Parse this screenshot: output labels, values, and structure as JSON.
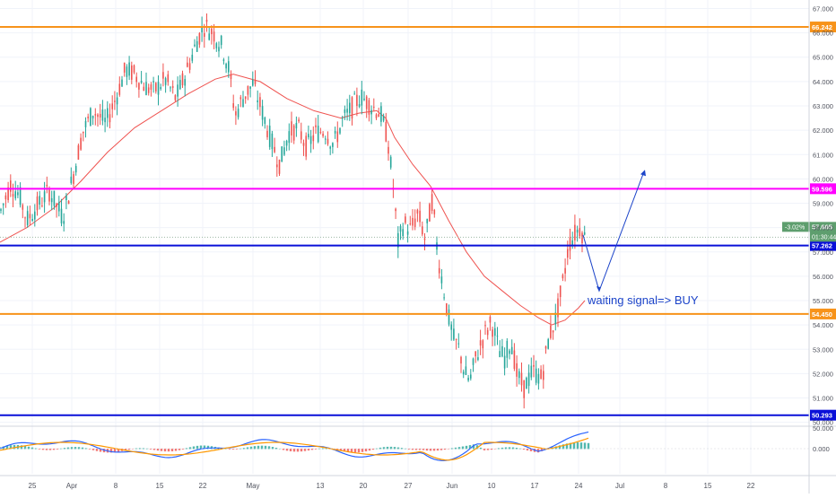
{
  "chart_data": {
    "type": "candlestick",
    "main_panel": {
      "y_axis_ticks": [
        "50.000",
        "51.000",
        "52.000",
        "53.000",
        "54.000",
        "55.000",
        "56.000",
        "57.000",
        "58.000",
        "59.000",
        "60.000",
        "61.000",
        "62.000",
        "63.000",
        "64.000",
        "65.000",
        "66.000",
        "67.000"
      ],
      "ylim": [
        49.95,
        67.35
      ],
      "horizontal_levels": [
        {
          "value": 66.242,
          "label": "66.242",
          "color": "#f7931a"
        },
        {
          "value": 59.596,
          "label": "59.596",
          "color": "#ff00ff"
        },
        {
          "value": 57.262,
          "label": "57.262",
          "color": "#0a10d8"
        },
        {
          "value": 54.45,
          "label": "54.450",
          "color": "#f7931a"
        },
        {
          "value": 50.293,
          "label": "50.293",
          "color": "#0a10d8"
        }
      ],
      "last_price": {
        "value": 57.605,
        "label": "57.605",
        "change": "-3.02%",
        "countdown": "01:30:44",
        "color": "#5e9e6e"
      },
      "moving_average": {
        "color": "#ef5350"
      },
      "annotation": {
        "text": "waiting signal=> BUY",
        "color": "#1c44c9"
      },
      "projection_arrow": {
        "color": "#1c44c9",
        "points": [
          [
            2019.478,
            57.6
          ],
          [
            2019.487,
            55.4
          ],
          [
            2019.512,
            60.3
          ]
        ]
      }
    },
    "oscillator_panel": {
      "y_axis_ticks": [
        "0.000",
        "50.000"
      ],
      "series_colors": {
        "macd": "#2962ff",
        "signal": "#ff9800",
        "hist_up": "#26a69a",
        "hist_down": "#ef5350"
      }
    },
    "x_axis_ticks": [
      "25",
      "Apr",
      "8",
      "15",
      "22",
      "May",
      "13",
      "20",
      "27",
      "Jun",
      "10",
      "17",
      "24",
      "Jul",
      "8",
      "15",
      "22"
    ],
    "colors": {
      "up": "#26a69a",
      "down": "#ef5350",
      "grid": "#f0f3fa",
      "axis_text": "#50535e"
    }
  }
}
